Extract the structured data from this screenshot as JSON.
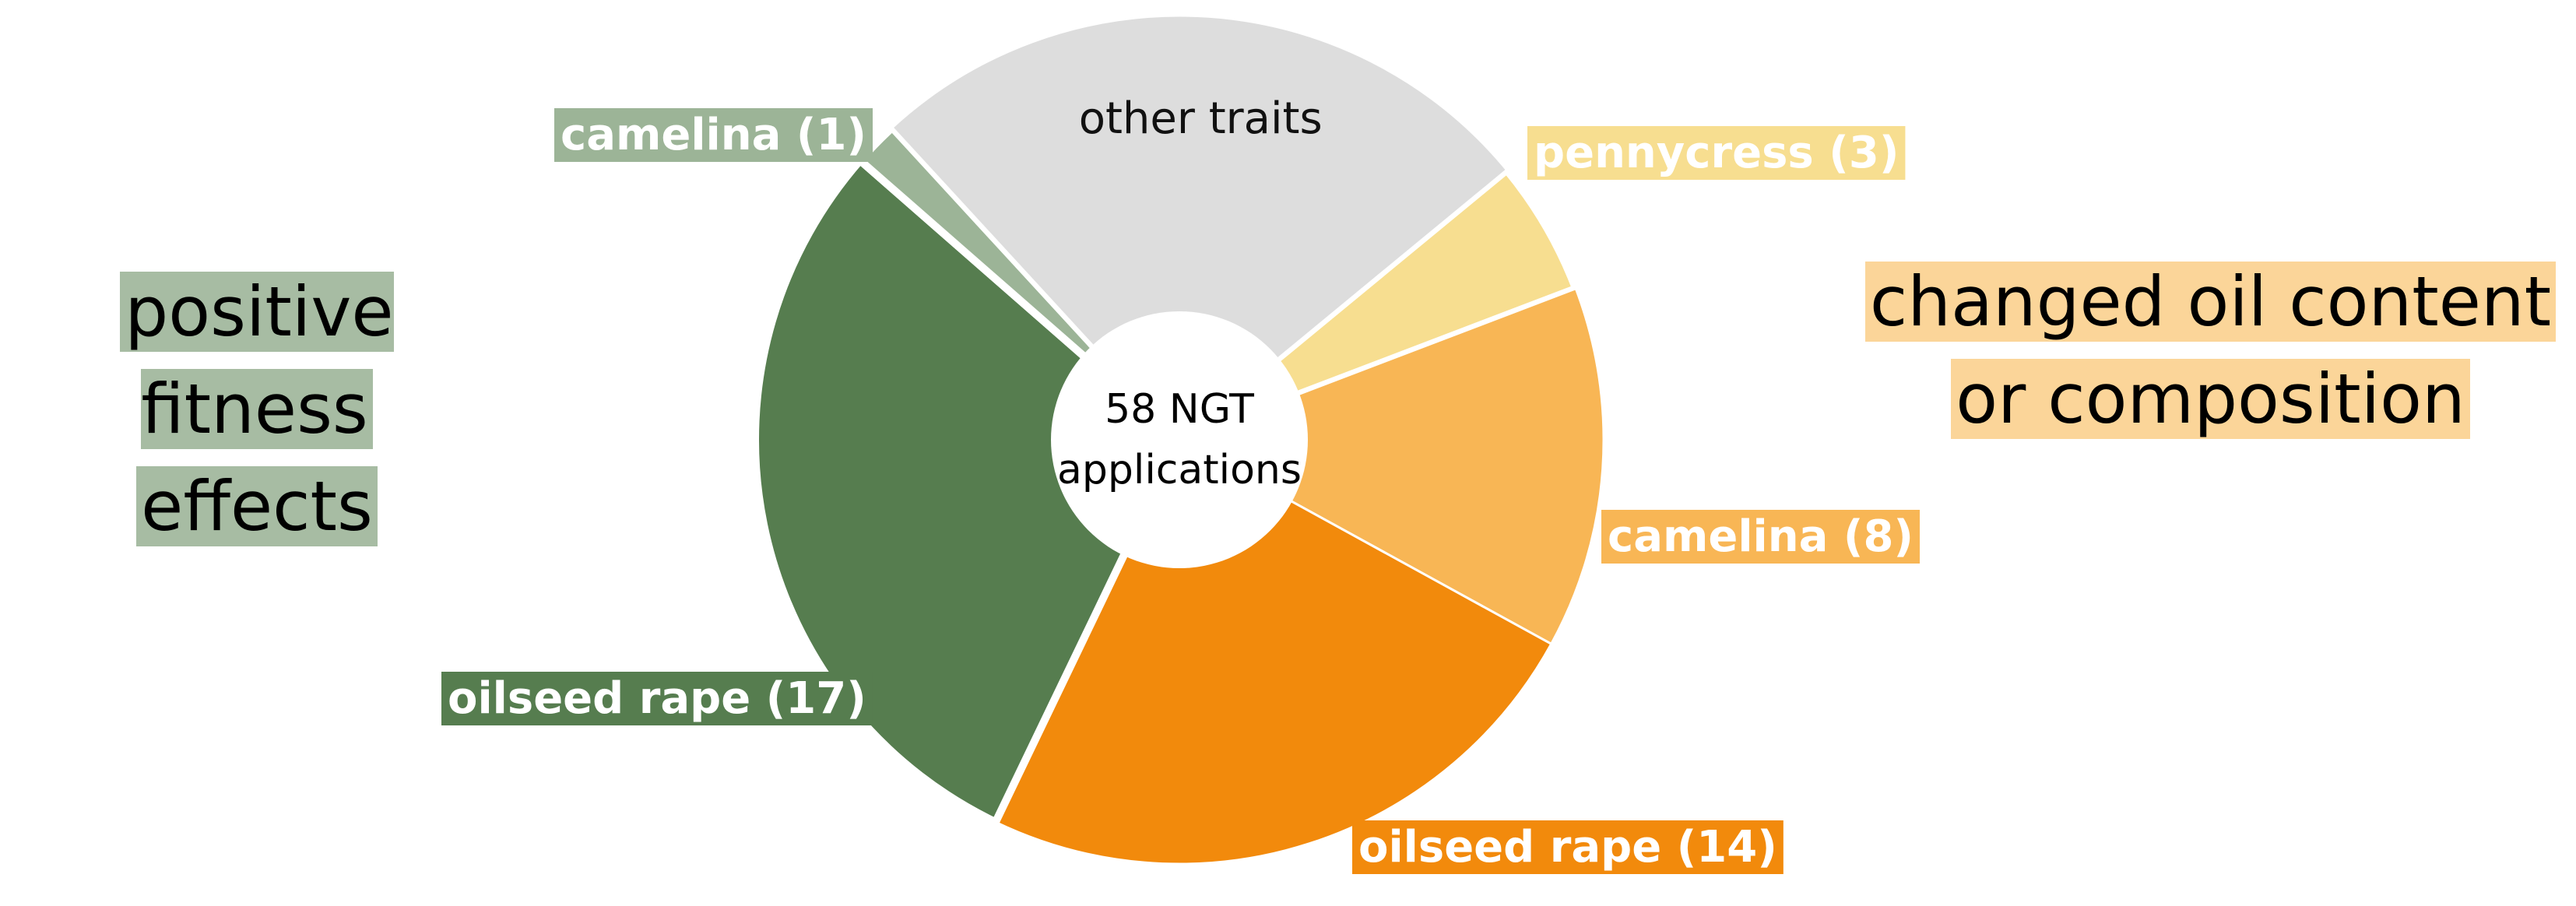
{
  "chart_data": {
    "type": "pie",
    "center_label": [
      "58 NGT",
      "applications"
    ],
    "slices": [
      {
        "label": "pennycress (3)",
        "value": 3,
        "color": "#F7DE90",
        "group": 1
      },
      {
        "label": "camelina (8)",
        "value": 8,
        "color": "#F8B655",
        "group": 1
      },
      {
        "label": "oilseed rape (14)",
        "value": 14,
        "color": "#F28A0C",
        "group": 1
      },
      {
        "label": "oilseed rape (17)",
        "value": 17,
        "color": "#567D4F",
        "group": 0
      },
      {
        "label": "camelina (1)",
        "value": 1,
        "color": "#9CB497",
        "group": 0
      },
      {
        "label": "other traits",
        "value": 15,
        "color": "#DDDDDD",
        "group": null
      }
    ],
    "groups": [
      {
        "label": [
          "positive fitness",
          "effects"
        ],
        "color": "#A7BCA3"
      },
      {
        "label": [
          "changed oil content",
          "or composition"
        ],
        "color": "#FBD599"
      }
    ]
  }
}
